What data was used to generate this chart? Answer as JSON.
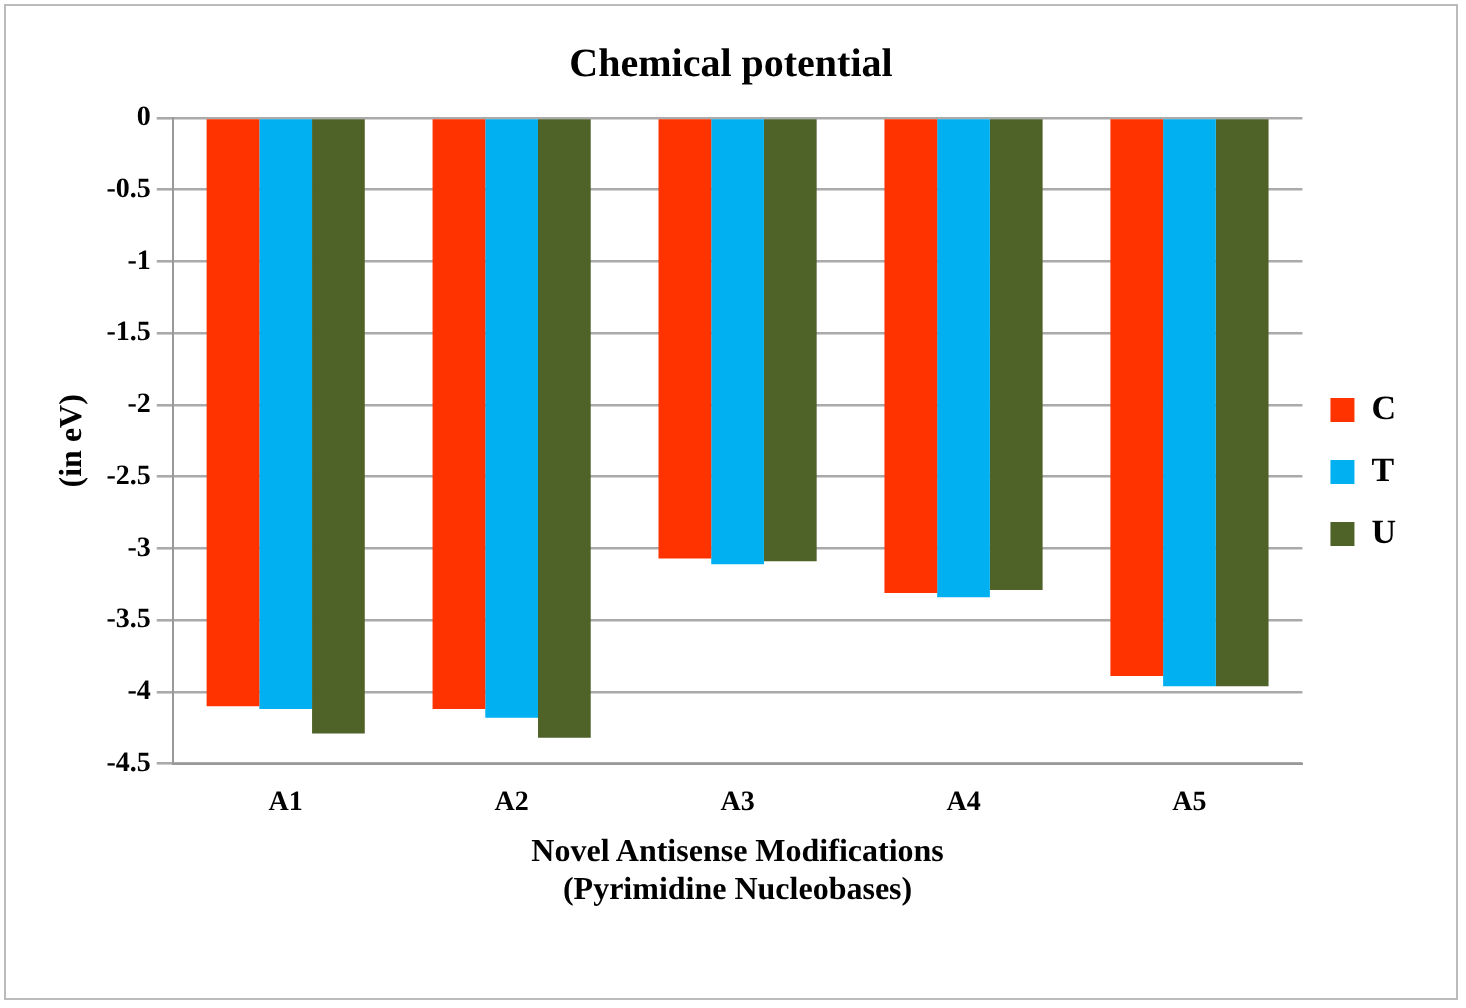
{
  "chart_data": {
    "type": "bar",
    "title": "Chemical potential",
    "xlabel": "Novel Antisense Modifications\n(Pyrimidine Nucleobases)",
    "ylabel": "(in eV)",
    "categories": [
      "A1",
      "A2",
      "A3",
      "A4",
      "A5"
    ],
    "series": [
      {
        "name": "C",
        "color": "#ff3300",
        "values": [
          -4.1,
          -4.12,
          -3.07,
          -3.31,
          -3.89
        ]
      },
      {
        "name": "T",
        "color": "#00b0f0",
        "values": [
          -4.12,
          -4.18,
          -3.11,
          -3.34,
          -3.96
        ]
      },
      {
        "name": "U",
        "color": "#4f6228",
        "values": [
          -4.29,
          -4.32,
          -3.09,
          -3.29,
          -3.96
        ]
      }
    ],
    "ylim": [
      -4.5,
      0
    ],
    "yticks": [
      0,
      -0.5,
      -1,
      -1.5,
      -2,
      -2.5,
      -3,
      -3.5,
      -4,
      -4.5
    ],
    "grid": "y",
    "legend": "right"
  }
}
